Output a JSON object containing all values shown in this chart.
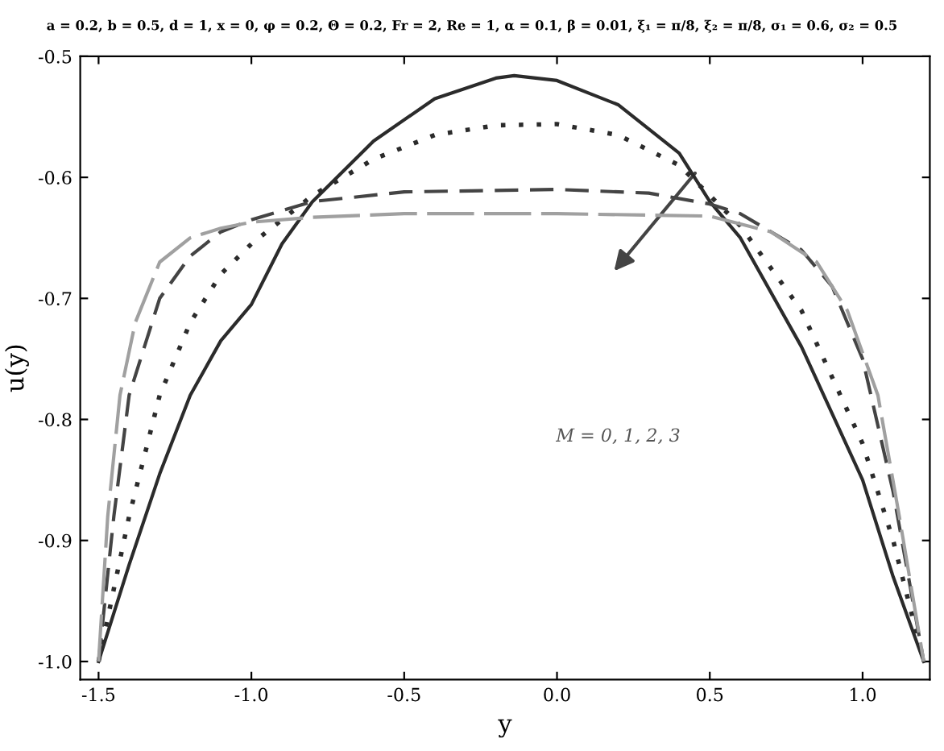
{
  "chart_data": {
    "type": "line",
    "title": "a = 0.2, b = 0.5, d = 1, x = 0, φ = 0.2, Θ = 0.2, Fr = 2, Re = 1, α = 0.1, β = 0.01, ξ₁ = π/8, ξ₂ = π/8, σ₁ = 0.6, σ₂ = 0.5",
    "xlabel": "y",
    "ylabel": "u(y)",
    "series": [
      {
        "color": "#2b2b2b",
        "line_style": "solid",
        "x": [
          -1.5,
          -1.4,
          -1.3,
          -1.2,
          -1.1,
          -1.0,
          -0.9,
          -0.8,
          -0.6,
          -0.4,
          -0.2,
          -0.14,
          0.0,
          0.2,
          0.4,
          0.5,
          0.6,
          0.8,
          1.0,
          1.1,
          1.2
        ],
        "values": [
          -1.0,
          -0.92,
          -0.845,
          -0.78,
          -0.735,
          -0.705,
          -0.655,
          -0.62,
          -0.57,
          -0.535,
          -0.518,
          -0.516,
          -0.52,
          -0.54,
          -0.58,
          -0.62,
          -0.65,
          -0.74,
          -0.85,
          -0.93,
          -1.0
        ]
      },
      {
        "color": "#2b2b2b",
        "line_style": "dotted",
        "x": [
          -1.5,
          -1.4,
          -1.3,
          -1.2,
          -1.1,
          -1.0,
          -0.9,
          -0.8,
          -0.6,
          -0.4,
          -0.2,
          0.0,
          0.2,
          0.4,
          0.5,
          0.6,
          0.8,
          1.0,
          1.1,
          1.2
        ],
        "values": [
          -1.0,
          -0.88,
          -0.78,
          -0.72,
          -0.68,
          -0.655,
          -0.635,
          -0.615,
          -0.585,
          -0.565,
          -0.557,
          -0.556,
          -0.565,
          -0.59,
          -0.615,
          -0.64,
          -0.71,
          -0.82,
          -0.9,
          -1.0
        ]
      },
      {
        "color": "#444444",
        "line_style": "dashed",
        "x": [
          -1.5,
          -1.45,
          -1.4,
          -1.3,
          -1.2,
          -1.1,
          -1.0,
          -0.8,
          -0.5,
          0.0,
          0.3,
          0.5,
          0.6,
          0.8,
          0.9,
          1.0,
          1.1,
          1.2
        ],
        "values": [
          -1.0,
          -0.88,
          -0.78,
          -0.7,
          -0.665,
          -0.645,
          -0.635,
          -0.62,
          -0.612,
          -0.61,
          -0.613,
          -0.622,
          -0.63,
          -0.66,
          -0.69,
          -0.75,
          -0.86,
          -1.0
        ]
      },
      {
        "color": "#a0a0a0",
        "line_style": "dashed",
        "x": [
          -1.5,
          -1.47,
          -1.43,
          -1.38,
          -1.3,
          -1.2,
          -1.1,
          -1.0,
          -0.8,
          -0.5,
          0.0,
          0.5,
          0.7,
          0.85,
          0.95,
          1.05,
          1.12,
          1.2
        ],
        "values": [
          -1.0,
          -0.88,
          -0.78,
          -0.72,
          -0.67,
          -0.65,
          -0.642,
          -0.637,
          -0.633,
          -0.63,
          -0.63,
          -0.632,
          -0.645,
          -0.67,
          -0.71,
          -0.78,
          -0.88,
          -1.0
        ]
      }
    ],
    "annotations": [
      "M = 0, 1, 2, 3"
    ],
    "xlim": [
      -1.56,
      1.22
    ],
    "ylim": [
      -1.015,
      -0.5
    ],
    "xticks": [
      {
        "value": -1.5,
        "label": "-1.5"
      },
      {
        "value": -1.0,
        "label": "-1.0"
      },
      {
        "value": -0.5,
        "label": "-0.5"
      },
      {
        "value": 0.0,
        "label": "0.0"
      },
      {
        "value": 0.5,
        "label": "0.5"
      },
      {
        "value": 1.0,
        "label": "1.0"
      }
    ],
    "yticks": [
      {
        "value": -1.0,
        "label": "-1.0"
      },
      {
        "value": -0.9,
        "label": "-0.9"
      },
      {
        "value": -0.8,
        "label": "-0.8"
      },
      {
        "value": -0.7,
        "label": "-0.7"
      },
      {
        "value": -0.6,
        "label": "-0.6"
      },
      {
        "value": -0.5,
        "label": "-0.5"
      }
    ],
    "grid": false,
    "legend": false
  }
}
